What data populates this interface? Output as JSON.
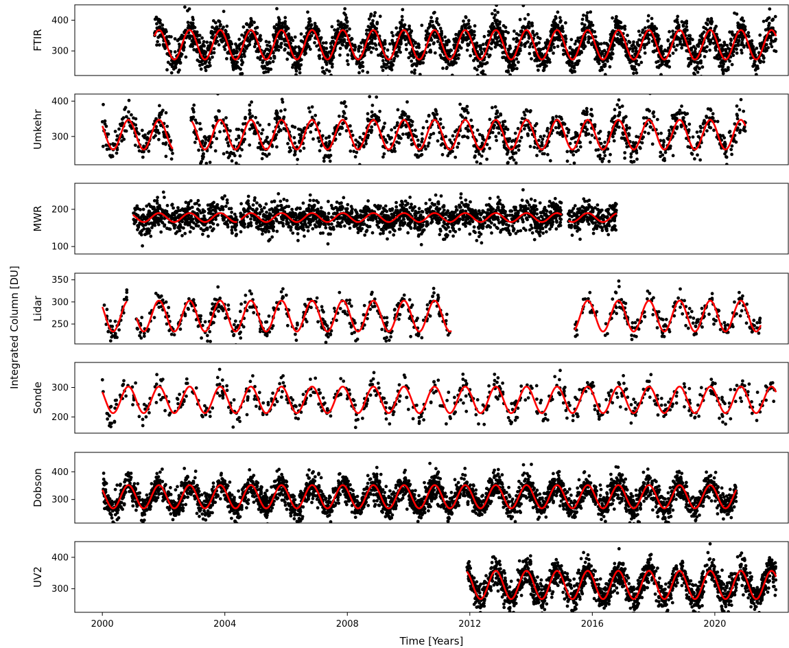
{
  "chart_data": {
    "type": "scatter",
    "xlabel": "Time [Years]",
    "ylabel": "Integrated Column [DU]",
    "x_ticks": [
      2000,
      2004,
      2008,
      2012,
      2016,
      2020
    ],
    "xlim": [
      1999.1,
      2022.4
    ],
    "colors": {
      "observations": "#000000",
      "fit": "#ff0000"
    },
    "panels": [
      {
        "name": "FTIR",
        "ylim": [
          220,
          450
        ],
        "y_ticks": [
          300,
          400
        ],
        "data_range": [
          2001.7,
          2022.0
        ],
        "gaps": [],
        "series": [
          {
            "kind": "observations",
            "mean": 320,
            "amplitude": 48,
            "noise": 28,
            "points_per_year": 150
          },
          {
            "kind": "fit",
            "mean": 320,
            "amplitude": 48
          }
        ]
      },
      {
        "name": "Umkehr",
        "ylim": [
          220,
          420
        ],
        "y_ticks": [
          300,
          400
        ],
        "data_range": [
          2000.0,
          2021.0
        ],
        "gaps": [
          [
            2002.3,
            2002.9
          ]
        ],
        "series": [
          {
            "kind": "observations",
            "mean": 305,
            "amplitude": 42,
            "noise": 25,
            "points_per_year": 70
          },
          {
            "kind": "fit",
            "mean": 305,
            "amplitude": 42
          }
        ]
      },
      {
        "name": "MWR",
        "ylim": [
          80,
          270
        ],
        "y_ticks": [
          100,
          200
        ],
        "data_range": [
          2001.0,
          2016.8
        ],
        "gaps": [
          [
            2004.4,
            2004.5
          ],
          [
            2015.0,
            2015.2
          ]
        ],
        "series": [
          {
            "kind": "observations",
            "mean": 178,
            "amplitude": 12,
            "noise": 20,
            "points_per_year": 140
          },
          {
            "kind": "fit",
            "mean": 178,
            "amplitude": 12
          }
        ]
      },
      {
        "name": "Lidar",
        "ylim": [
          205,
          365
        ],
        "y_ticks": [
          250,
          300,
          350
        ],
        "data_range": [
          2000.0,
          2021.5
        ],
        "gaps": [
          [
            2000.8,
            2001.1
          ],
          [
            2011.4,
            2015.4
          ]
        ],
        "series": [
          {
            "kind": "observations",
            "mean": 268,
            "amplitude": 35,
            "noise": 15,
            "points_per_year": 40
          },
          {
            "kind": "fit",
            "mean": 268,
            "amplitude": 35
          }
        ]
      },
      {
        "name": "Sonde",
        "ylim": [
          145,
          385
        ],
        "y_ticks": [
          200,
          300
        ],
        "data_range": [
          2000.0,
          2022.0
        ],
        "gaps": [],
        "series": [
          {
            "kind": "observations",
            "mean": 258,
            "amplitude": 45,
            "noise": 25,
            "points_per_year": 30
          },
          {
            "kind": "fit",
            "mean": 258,
            "amplitude": 45
          }
        ]
      },
      {
        "name": "Dobson",
        "ylim": [
          215,
          470
        ],
        "y_ticks": [
          300,
          400
        ],
        "data_range": [
          2000.0,
          2020.7
        ],
        "gaps": [],
        "series": [
          {
            "kind": "observations",
            "mean": 310,
            "amplitude": 42,
            "noise": 25,
            "points_per_year": 160
          },
          {
            "kind": "fit",
            "mean": 310,
            "amplitude": 42
          }
        ]
      },
      {
        "name": "UV2",
        "ylim": [
          225,
          450
        ],
        "y_ticks": [
          300,
          400
        ],
        "data_range": [
          2011.9,
          2022.0
        ],
        "gaps": [],
        "series": [
          {
            "kind": "observations",
            "mean": 312,
            "amplitude": 45,
            "noise": 25,
            "points_per_year": 160
          },
          {
            "kind": "fit",
            "mean": 312,
            "amplitude": 45
          }
        ]
      }
    ]
  }
}
